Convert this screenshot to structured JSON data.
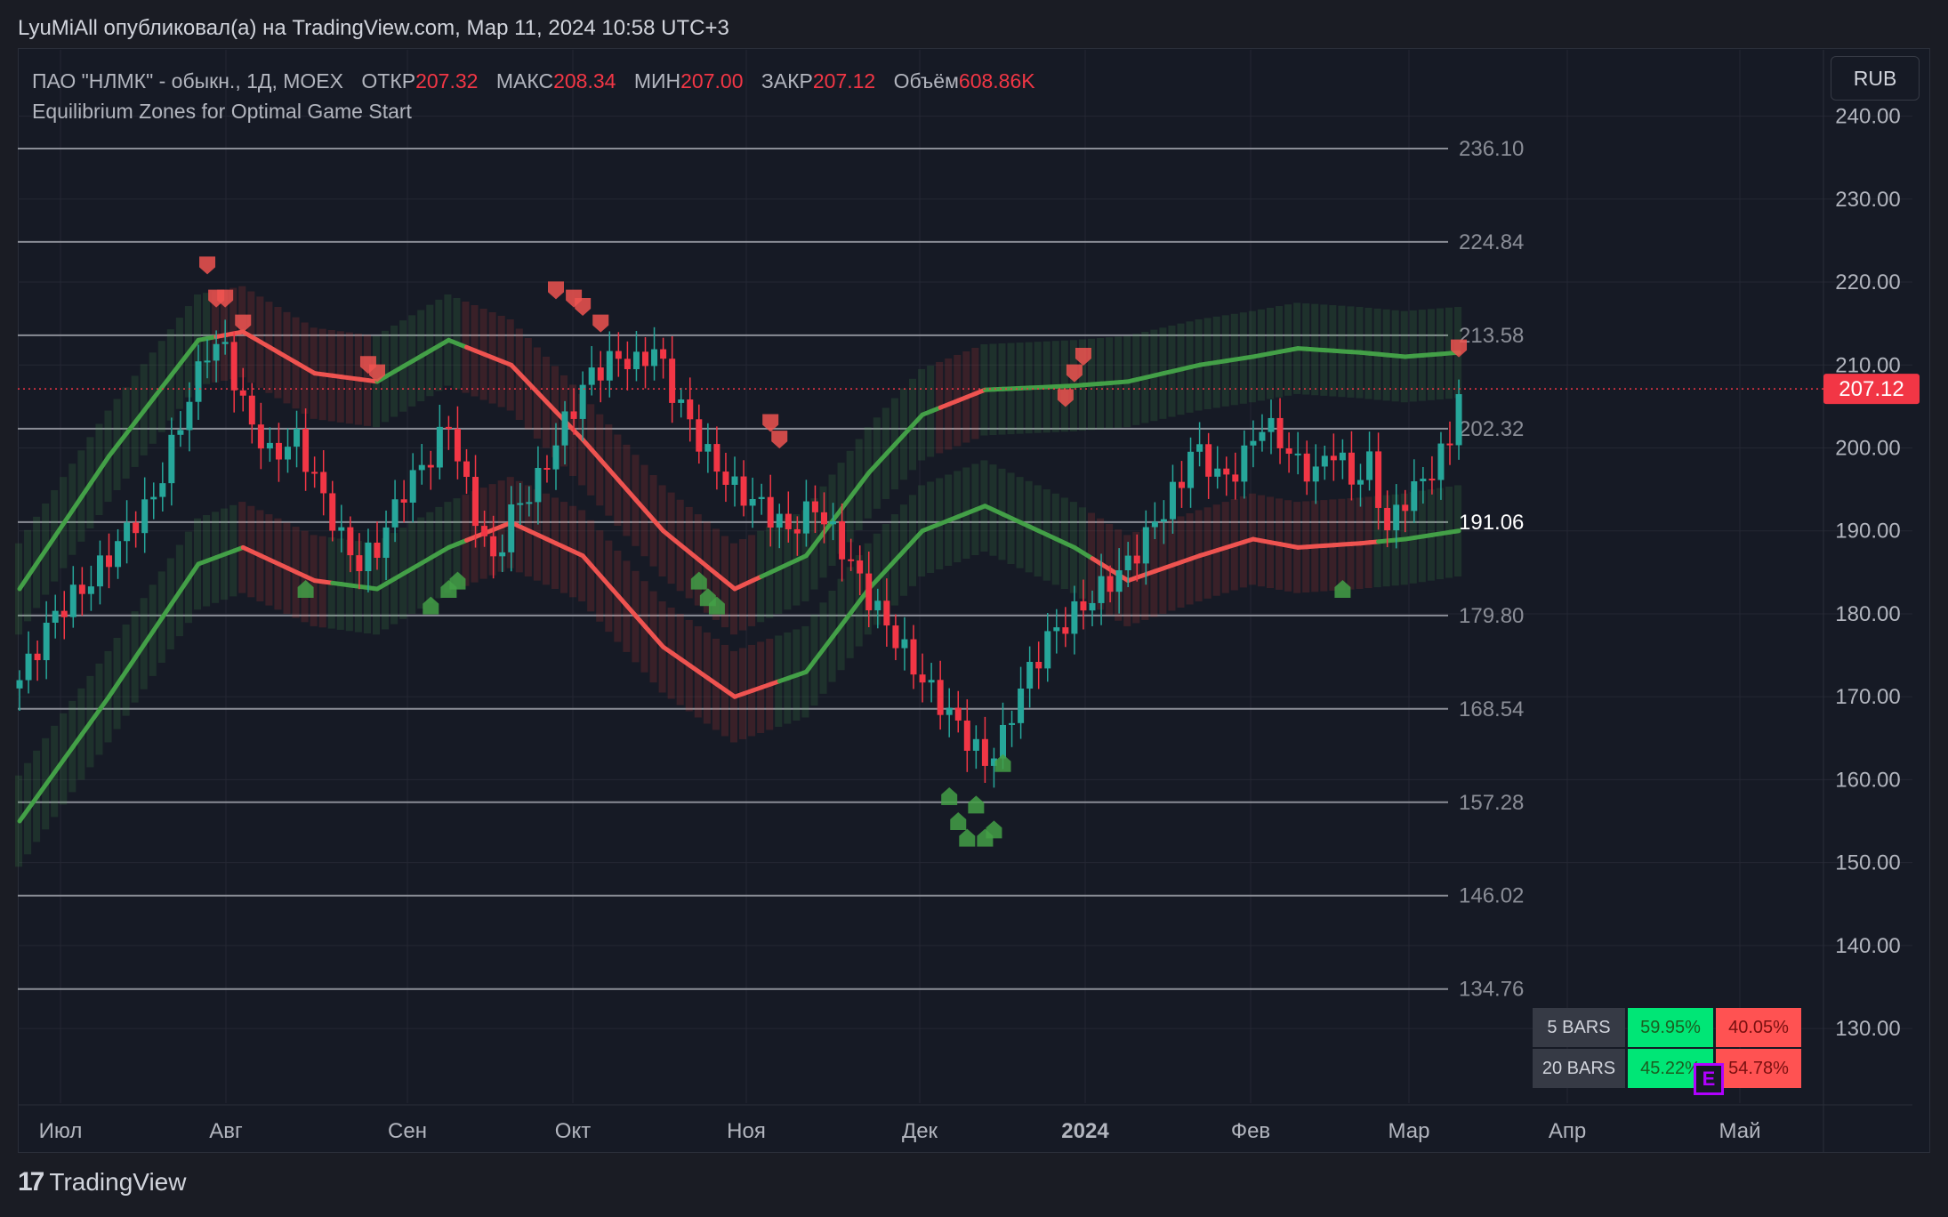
{
  "header": {
    "published_line": "LyuMiAll опубликовал(а) на TradingView.com, Мар 11, 2024 10:58 UTC+3"
  },
  "legend": {
    "symbol": "ПАО \"НЛМК\" - обыкн., 1Д, MOEX",
    "open_label": "ОТКР",
    "open_value": "207.32",
    "high_label": "МАКС",
    "high_value": "208.34",
    "low_label": "МИН",
    "low_value": "207.00",
    "close_label": "ЗАКР",
    "close_value": "207.12",
    "volume_label": "Объём",
    "volume_value": "608.86K",
    "indicator": "Equilibrium Zones for Optimal Game Start"
  },
  "currency_button": "RUB",
  "stats_table": {
    "rows": [
      {
        "label": "5 BARS",
        "up": "59.95%",
        "down": "40.05%"
      },
      {
        "label": "20 BARS",
        "up": "45.22%",
        "down": "54.78%"
      }
    ],
    "badge": "E"
  },
  "footer": {
    "brand": "TradingView"
  },
  "colors": {
    "background": "#161a25",
    "up": "#26a69a",
    "down": "#f23645",
    "band_green": "#4caf50",
    "band_red": "#f44336",
    "grid": "#242733"
  },
  "chart_data": {
    "type": "candlestick",
    "y_axis": {
      "ylim": [
        121,
        248
      ],
      "ticks": [
        "130.00",
        "140.00",
        "150.00",
        "160.00",
        "170.00",
        "180.00",
        "190.00",
        "200.00",
        "210.00",
        "220.00",
        "230.00",
        "240.00"
      ],
      "tick_values": [
        130,
        140,
        150,
        160,
        170,
        180,
        190,
        200,
        210,
        220,
        230,
        240
      ],
      "last_price": 207.12,
      "last_price_label": "207.12"
    },
    "x_axis": {
      "labels": [
        "Июл",
        "Авг",
        "Сен",
        "Окт",
        "Ноя",
        "Дек",
        "2024",
        "Фев",
        "Мар",
        "Апр",
        "Май"
      ],
      "bold_label": "2024"
    },
    "levels": [
      {
        "value": 236.1,
        "label": "236.10"
      },
      {
        "value": 224.84,
        "label": "224.84"
      },
      {
        "value": 213.58,
        "label": "213.58"
      },
      {
        "value": 202.32,
        "label": "202.32"
      },
      {
        "value": 191.06,
        "label": "191.06",
        "highlight": true
      },
      {
        "value": 179.8,
        "label": "179.80"
      },
      {
        "value": 168.54,
        "label": "168.54"
      },
      {
        "value": 157.28,
        "label": "157.28"
      },
      {
        "value": 146.02,
        "label": "146.02"
      },
      {
        "value": 134.76,
        "label": "134.76"
      }
    ],
    "close_path": [
      [
        0,
        172
      ],
      [
        4,
        180
      ],
      [
        8,
        184
      ],
      [
        12,
        190
      ],
      [
        15,
        194
      ],
      [
        18,
        203
      ],
      [
        21,
        212
      ],
      [
        23,
        212
      ],
      [
        25,
        205
      ],
      [
        28,
        199
      ],
      [
        31,
        201
      ],
      [
        34,
        194
      ],
      [
        36,
        189
      ],
      [
        38,
        186
      ],
      [
        40,
        188
      ],
      [
        43,
        195
      ],
      [
        46,
        199
      ],
      [
        48,
        203
      ],
      [
        50,
        195
      ],
      [
        53,
        186
      ],
      [
        55,
        192
      ],
      [
        58,
        196
      ],
      [
        61,
        203
      ],
      [
        64,
        209
      ],
      [
        67,
        211
      ],
      [
        69,
        210
      ],
      [
        71,
        212
      ],
      [
        73,
        207
      ],
      [
        75,
        203
      ],
      [
        77,
        199
      ],
      [
        80,
        195
      ],
      [
        83,
        193
      ],
      [
        86,
        190
      ],
      [
        89,
        193
      ],
      [
        92,
        188
      ],
      [
        95,
        182
      ],
      [
        98,
        177
      ],
      [
        101,
        172
      ],
      [
        104,
        168
      ],
      [
        106,
        165
      ],
      [
        108,
        162
      ],
      [
        110,
        165
      ],
      [
        112,
        171
      ],
      [
        115,
        177
      ],
      [
        118,
        180
      ],
      [
        121,
        183
      ],
      [
        124,
        186
      ],
      [
        127,
        191
      ],
      [
        130,
        196
      ],
      [
        131,
        200
      ],
      [
        133,
        198
      ],
      [
        135,
        196
      ],
      [
        137,
        199
      ],
      [
        139,
        203
      ],
      [
        141,
        201
      ],
      [
        143,
        198
      ],
      [
        145,
        197
      ],
      [
        147,
        200
      ],
      [
        149,
        196
      ],
      [
        151,
        198
      ],
      [
        153,
        190
      ],
      [
        155,
        194
      ],
      [
        157,
        196
      ],
      [
        159,
        199
      ],
      [
        160,
        201
      ],
      [
        161,
        207.12
      ]
    ],
    "upper_band": [
      [
        0,
        183
      ],
      [
        10,
        199
      ],
      [
        20,
        213
      ],
      [
        25,
        214
      ],
      [
        33,
        209
      ],
      [
        40,
        208
      ],
      [
        48,
        213
      ],
      [
        55,
        210
      ],
      [
        63,
        201
      ],
      [
        72,
        190
      ],
      [
        80,
        183
      ],
      [
        88,
        187
      ],
      [
        95,
        197
      ],
      [
        101,
        204
      ],
      [
        108,
        207
      ],
      [
        118,
        207.5
      ],
      [
        124,
        208
      ],
      [
        132,
        210
      ],
      [
        138,
        211
      ],
      [
        143,
        212
      ],
      [
        150,
        211.5
      ],
      [
        155,
        211
      ],
      [
        161,
        211.5
      ]
    ],
    "lower_band": [
      [
        0,
        155
      ],
      [
        10,
        170
      ],
      [
        20,
        186
      ],
      [
        25,
        188
      ],
      [
        33,
        184
      ],
      [
        40,
        183
      ],
      [
        48,
        188
      ],
      [
        55,
        191
      ],
      [
        63,
        187
      ],
      [
        72,
        176
      ],
      [
        80,
        170
      ],
      [
        88,
        173
      ],
      [
        95,
        183
      ],
      [
        101,
        190
      ],
      [
        108,
        193
      ],
      [
        118,
        188
      ],
      [
        124,
        184
      ],
      [
        132,
        187
      ],
      [
        138,
        189
      ],
      [
        143,
        188
      ],
      [
        150,
        188.5
      ],
      [
        155,
        189
      ],
      [
        161,
        190
      ]
    ],
    "upper_band_colors": [
      [
        0,
        "green"
      ],
      [
        22,
        "red"
      ],
      [
        40,
        "green"
      ],
      [
        50,
        "red"
      ],
      [
        83,
        "green"
      ],
      [
        103,
        "red"
      ],
      [
        108,
        "green"
      ],
      [
        115,
        "green"
      ],
      [
        150,
        "green"
      ]
    ],
    "lower_band_colors": [
      [
        0,
        "green"
      ],
      [
        25,
        "red"
      ],
      [
        35,
        "green"
      ],
      [
        50,
        "red"
      ],
      [
        70,
        "red"
      ],
      [
        77,
        "red"
      ],
      [
        85,
        "green"
      ],
      [
        120,
        "red"
      ],
      [
        152,
        "green"
      ]
    ],
    "sell_signals": [
      [
        21,
        222
      ],
      [
        22,
        218
      ],
      [
        23,
        218
      ],
      [
        25,
        215
      ],
      [
        39,
        210
      ],
      [
        40,
        209
      ],
      [
        60,
        219
      ],
      [
        62,
        218
      ],
      [
        63,
        217
      ],
      [
        65,
        215
      ],
      [
        84,
        203
      ],
      [
        85,
        201
      ],
      [
        117,
        206
      ],
      [
        118,
        209
      ],
      [
        119,
        211
      ],
      [
        161,
        212
      ]
    ],
    "buy_signals": [
      [
        32,
        183
      ],
      [
        46,
        181
      ],
      [
        48,
        183
      ],
      [
        49,
        184
      ],
      [
        76,
        184
      ],
      [
        77,
        182
      ],
      [
        78,
        181
      ],
      [
        104,
        158
      ],
      [
        105,
        155
      ],
      [
        106,
        153
      ],
      [
        107,
        157
      ],
      [
        108,
        153
      ],
      [
        109,
        154
      ],
      [
        110,
        162
      ],
      [
        148,
        183
      ]
    ]
  }
}
